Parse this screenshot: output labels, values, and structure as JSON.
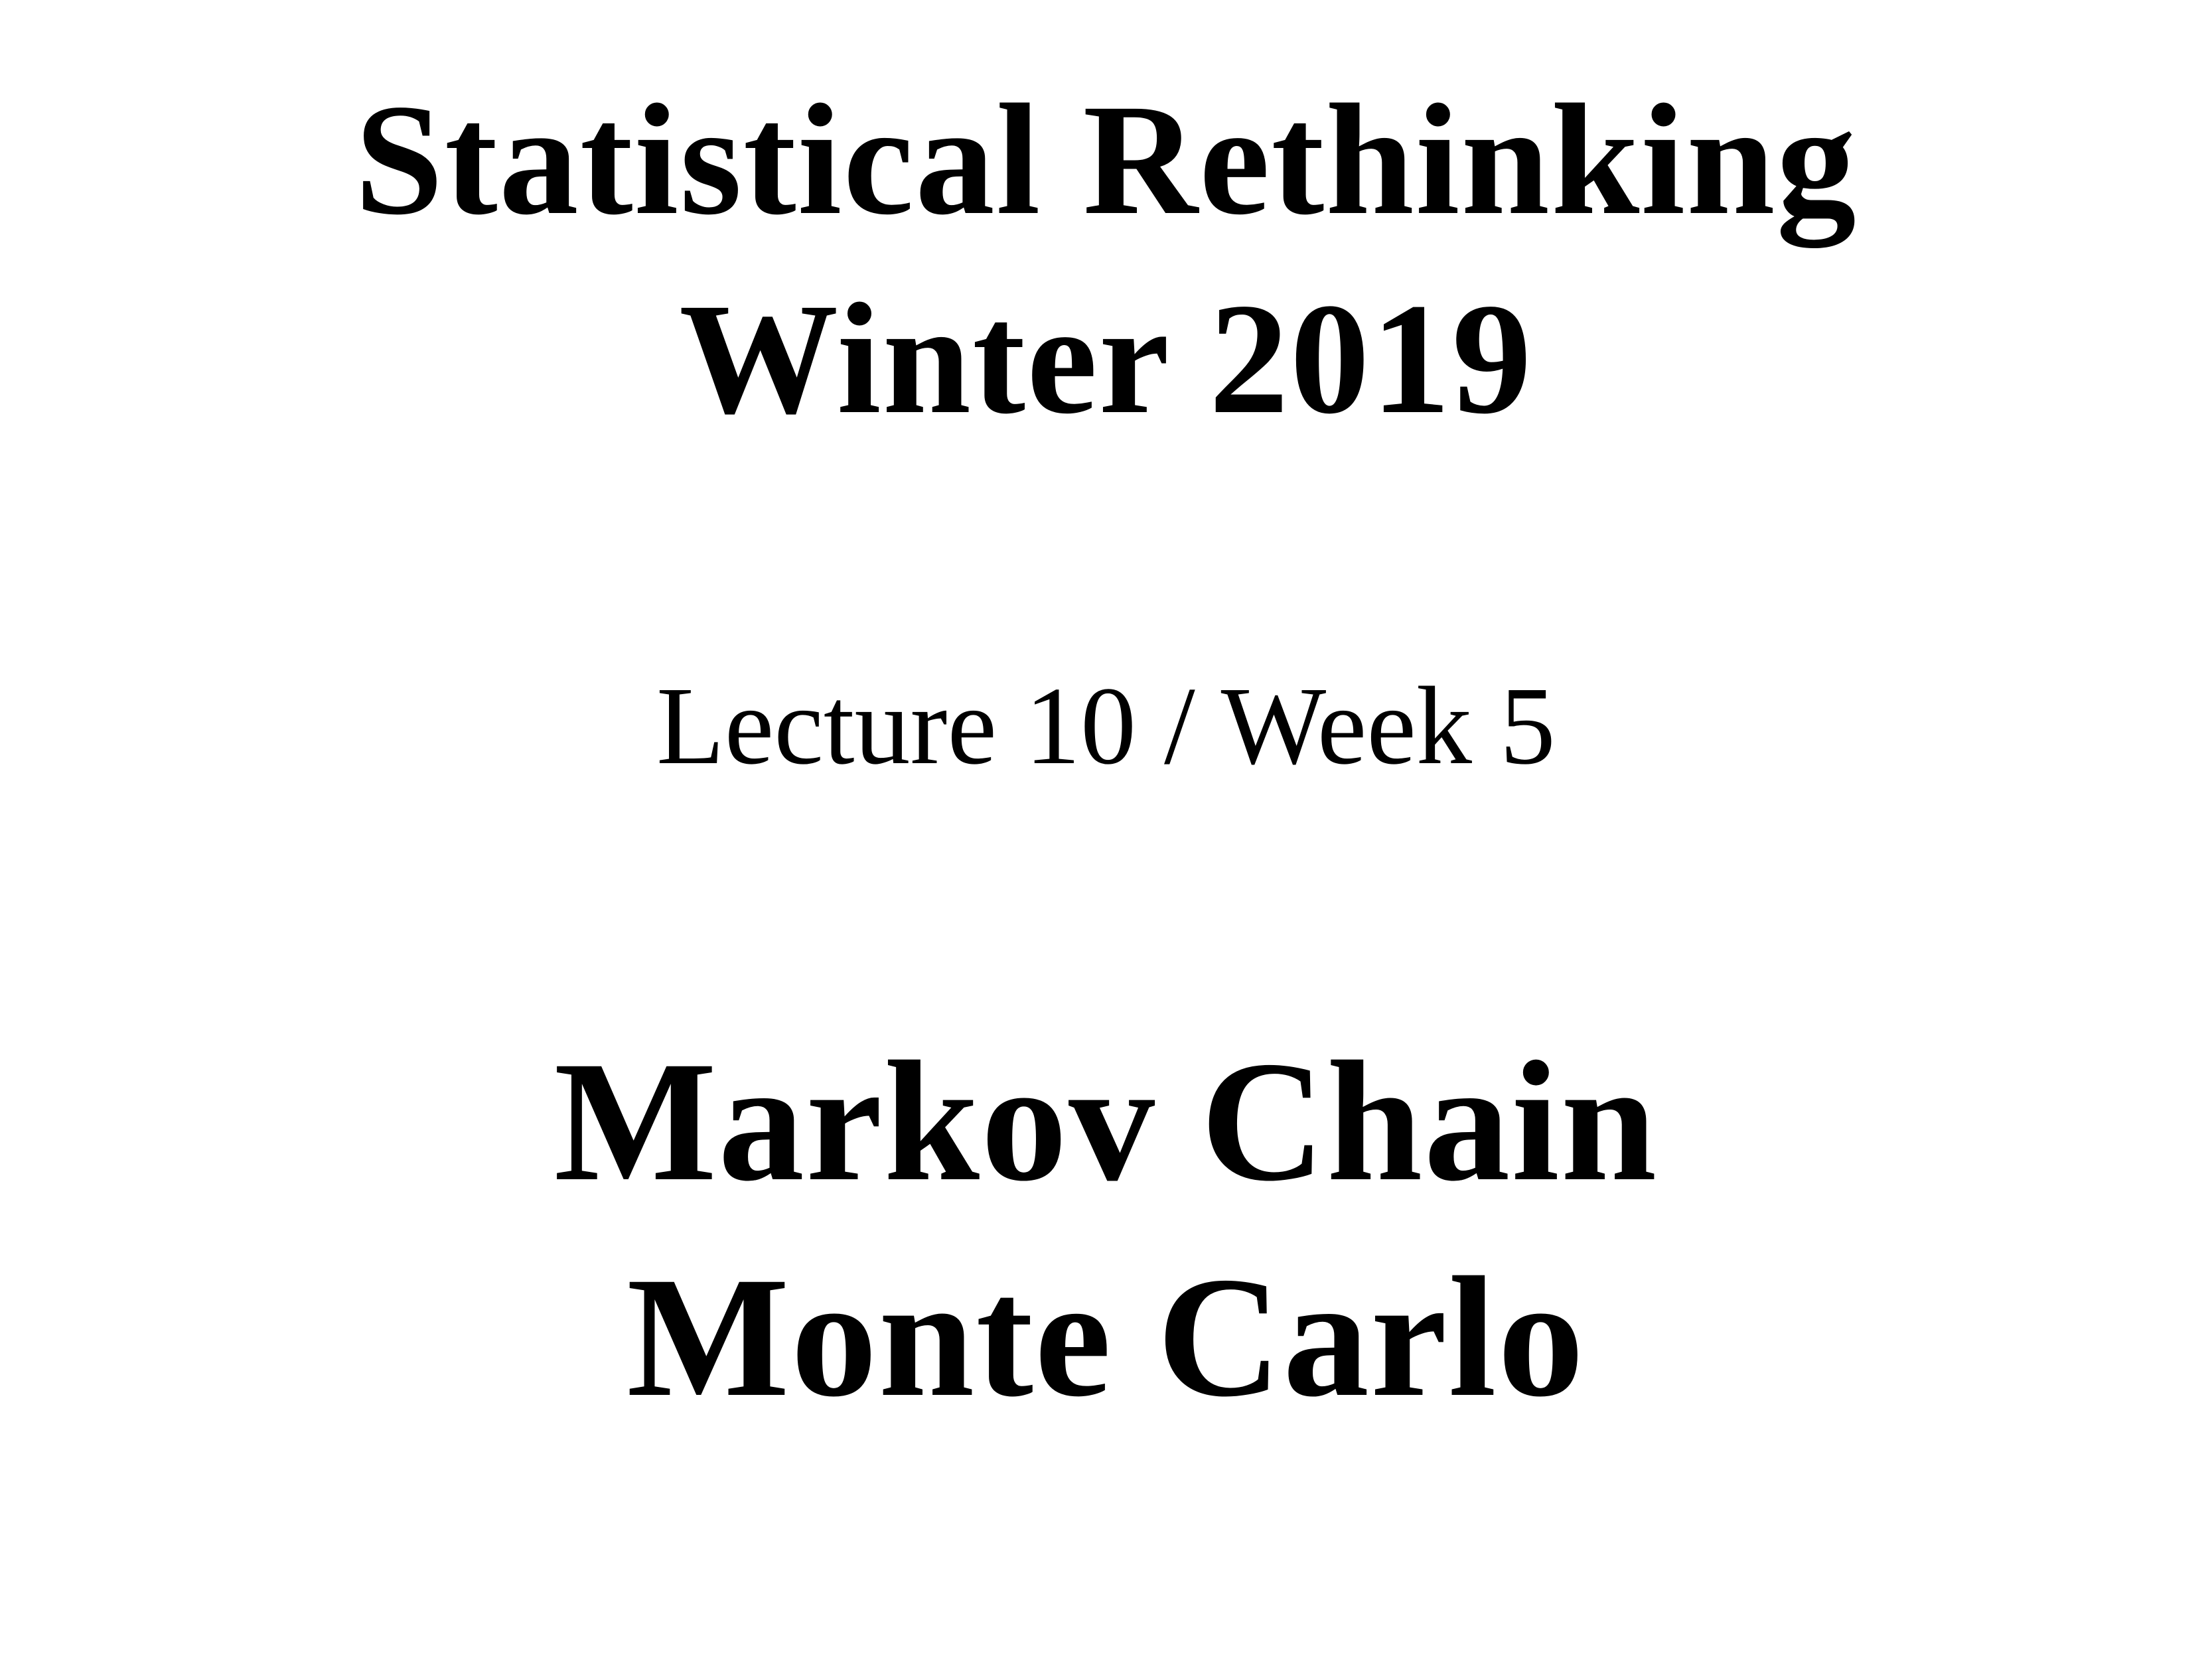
{
  "slide": {
    "course_title_line_1": "Statistical Rethinking",
    "course_title_line_2": "Winter 2019",
    "lecture_info": "Lecture 10 / Week 5",
    "lecture_title_line_1": "Markov Chain",
    "lecture_title_line_2": "Monte Carlo"
  }
}
